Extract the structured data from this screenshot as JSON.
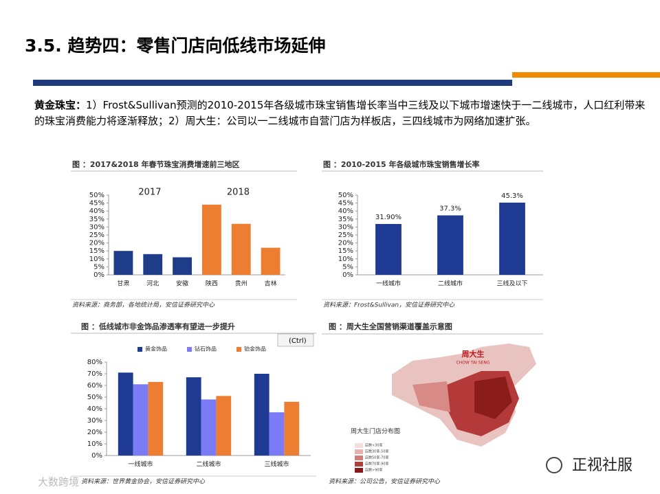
{
  "header": {
    "title": "3.5. 趋势四：零售门店向低线市场延伸"
  },
  "body": {
    "lead": "黄金珠宝：",
    "text": "1）Frost&Sullivan预测的2010-2015年各级城市珠宝销售增长率当中三线及以下城市增速快于一二线城市，人口红利带来的珠宝消费能力将逐渐释放；2）周大生：公司以一二线城市自营门店为样板店，三四线城市为网络加速扩张。"
  },
  "chart_data": [
    {
      "type": "bar",
      "title": "图 ：2017&2018 年春节珠宝消费增速前三地区",
      "categories": [
        "甘肃",
        "河北",
        "安徽",
        "陕西",
        "贵州",
        "吉林"
      ],
      "values": [
        15,
        13,
        11,
        44,
        32,
        17
      ],
      "colors": [
        "#1f3c88",
        "#1f3c88",
        "#1f3c88",
        "#ed7d31",
        "#ed7d31",
        "#ed7d31"
      ],
      "annotations": [
        "2017",
        "2018"
      ],
      "ylim": [
        0,
        50
      ],
      "yticks": [
        {
          "value": 0,
          "label": "0%"
        },
        {
          "value": 5,
          "label": "5%"
        },
        {
          "value": 10,
          "label": "10%"
        },
        {
          "value": 15,
          "label": "15%"
        },
        {
          "value": 20,
          "label": "20%"
        },
        {
          "value": 25,
          "label": "25%"
        },
        {
          "value": 30,
          "label": "30%"
        },
        {
          "value": 35,
          "label": "35%"
        },
        {
          "value": 40,
          "label": "40%"
        },
        {
          "value": 45,
          "label": "45%"
        },
        {
          "value": 50,
          "label": "50%"
        }
      ],
      "source": "资料来源：商务部，各地统计局，安信证券研究中心"
    },
    {
      "type": "bar",
      "title": "图 ：2010-2015 年各级城市珠宝销售增长率",
      "categories": [
        "一线城市",
        "二线城市",
        "三线及以下"
      ],
      "values": [
        31.9,
        37.3,
        45.3
      ],
      "value_labels": [
        "31.90%",
        "37.3%",
        "45.3%"
      ],
      "color": "#1f3a93",
      "ylim": [
        0,
        50
      ],
      "yticks": [
        {
          "value": 0,
          "label": "0%"
        },
        {
          "value": 5,
          "label": "5%"
        },
        {
          "value": 10,
          "label": "10%"
        },
        {
          "value": 15,
          "label": "15%"
        },
        {
          "value": 20,
          "label": "20%"
        },
        {
          "value": 25,
          "label": "25%"
        },
        {
          "value": 30,
          "label": "30%"
        },
        {
          "value": 35,
          "label": "35%"
        },
        {
          "value": 40,
          "label": "40%"
        },
        {
          "value": 45,
          "label": "45%"
        },
        {
          "value": 50,
          "label": "50%"
        }
      ],
      "source": "资料来源：Frost&Sullivan，安信证券研究中心"
    },
    {
      "type": "grouped_bar",
      "title": "图 ：低线城市非金饰品渗透率有望进一步提升",
      "categories": [
        "一线城市",
        "二线城市",
        "三线城市"
      ],
      "series": [
        {
          "name": "黄金饰品",
          "color": "#1f3a93",
          "values": [
            71,
            67,
            70
          ]
        },
        {
          "name": "钻石饰品",
          "color": "#7b7bf5",
          "values": [
            61,
            48,
            37
          ]
        },
        {
          "name": "铂金饰品",
          "color": "#ed7d31",
          "values": [
            63,
            51,
            46
          ]
        }
      ],
      "ylim": [
        0,
        80
      ],
      "yticks": [
        {
          "value": 0,
          "label": "0%"
        },
        {
          "value": 10,
          "label": "10%"
        },
        {
          "value": 20,
          "label": "20%"
        },
        {
          "value": 30,
          "label": "30%"
        },
        {
          "value": 40,
          "label": "40%"
        },
        {
          "value": 50,
          "label": "50%"
        },
        {
          "value": 60,
          "label": "60%"
        },
        {
          "value": 70,
          "label": "70%"
        },
        {
          "value": 80,
          "label": "80%"
        }
      ],
      "source": "资料来源：世界黄金协会，安信证券研究中心"
    }
  ],
  "ui": {
    "paste_button": "(Ctrl)"
  },
  "map": {
    "title": "图 ：周大生全国营销渠道覆盖示意图",
    "brand": "周大生",
    "brand_en": "CHOW TAI SENG",
    "label": "周大生门店分布图",
    "legend": [
      "店数<30家",
      "店数30家-50家",
      "店数50家-70家",
      "店数70家-90家",
      "店数>90家"
    ],
    "source": "资料来源：公司公告，安信证券研究中心"
  },
  "watermarks": {
    "right": "正视社服",
    "left": "大数跨境"
  }
}
